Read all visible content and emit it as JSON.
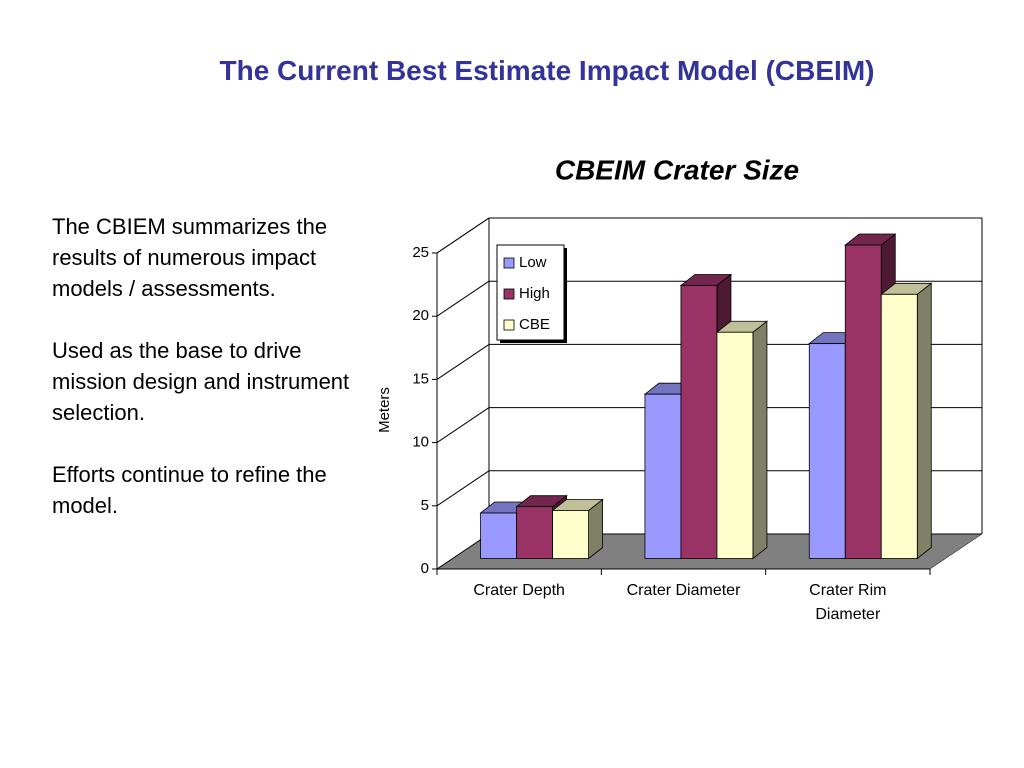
{
  "title": "The Current Best Estimate Impact Model (CBEIM)",
  "body": {
    "paragraphs": [
      "The CBIEM summarizes the results of numerous impact models / assessments.",
      "Used as the base to drive mission design and instrument selection.",
      "Efforts continue to refine the model."
    ]
  },
  "chart_data": {
    "type": "bar3d",
    "title": "CBEIM Crater Size",
    "y_label": "Meters",
    "categories": [
      "Crater Depth",
      "Crater Diameter",
      "Crater Rim Diameter"
    ],
    "series": [
      {
        "name": "Low",
        "color": "#9999ff",
        "values": [
          3.6,
          13,
          17
        ]
      },
      {
        "name": "High",
        "color": "#993366",
        "values": [
          4.1,
          21.6,
          24.8
        ]
      },
      {
        "name": "CBE",
        "color": "#ffffcc",
        "values": [
          3.8,
          17.9,
          20.9
        ]
      }
    ],
    "ylim": [
      0,
      25
    ],
    "yticks": [
      0,
      5,
      10,
      15,
      20,
      25
    ],
    "grid": true,
    "legend": "top-left"
  }
}
